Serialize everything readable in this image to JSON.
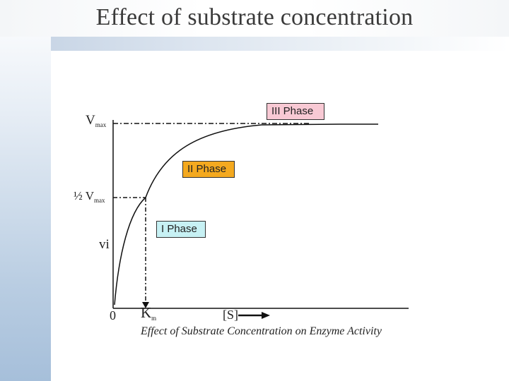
{
  "slide": {
    "title": "Effect of substrate concentration"
  },
  "diagram": {
    "y_labels": {
      "vmax_main": "V",
      "vmax_sub": "max",
      "half_main": "½ V",
      "half_sub": "max",
      "vi": "vi"
    },
    "x_labels": {
      "origin": "0",
      "km_main": "K",
      "km_sub": "m",
      "substrate": "[S]"
    },
    "caption": "Effect of Substrate Concentration on Enzyme Activity",
    "phases": {
      "phase3": "III Phase",
      "phase2": "II Phase",
      "phase1": "I Phase"
    },
    "colors": {
      "phase3": "#f8c9d4",
      "phase2": "#f4a91f",
      "phase1": "#c7f1f4",
      "sidebar": "#a6bfda"
    }
  }
}
